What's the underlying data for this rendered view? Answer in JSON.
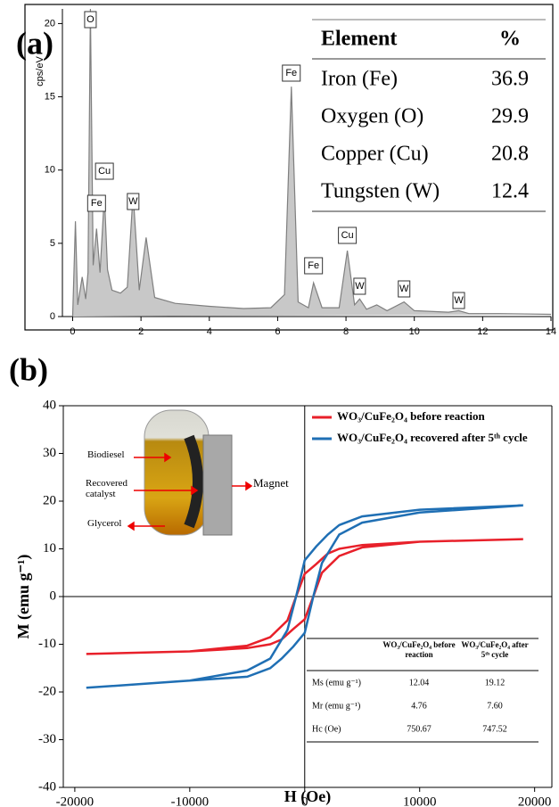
{
  "chart_data": [
    {
      "type": "line",
      "panel_label": "(a)",
      "y_label": "cps/eV",
      "x": [
        0,
        0.08,
        0.15,
        0.28,
        0.38,
        0.45,
        0.52,
        0.6,
        0.7,
        0.8,
        0.93,
        1.02,
        1.15,
        1.4,
        1.6,
        1.77,
        1.95,
        2.15,
        2.4,
        3,
        4,
        5,
        5.8,
        6.2,
        6.4,
        6.6,
        6.9,
        7.05,
        7.3,
        7.8,
        8.04,
        8.25,
        8.4,
        8.6,
        8.9,
        9.2,
        9.7,
        10,
        11,
        11.3,
        11.6,
        12.5,
        14
      ],
      "values": [
        0,
        6.5,
        0.8,
        2.7,
        1.2,
        3,
        21,
        3.5,
        6.0,
        3.0,
        8.3,
        3.2,
        1.8,
        1.6,
        2.0,
        8.4,
        1.8,
        5.4,
        1.3,
        0.9,
        0.7,
        0.55,
        0.6,
        1.5,
        15.7,
        1.0,
        0.6,
        2.3,
        0.6,
        0.6,
        4.5,
        0.8,
        1.2,
        0.5,
        0.8,
        0.4,
        1.0,
        0.4,
        0.3,
        0.4,
        0.2,
        0.2,
        0.15
      ],
      "color": "#7f7f7f",
      "fill": "#c8c8c8",
      "xlim": [
        -0.3,
        14
      ],
      "ylim": [
        0,
        21
      ],
      "xticks": [
        0,
        2,
        4,
        6,
        8,
        10,
        12,
        14
      ],
      "yticks": [
        0,
        5,
        10,
        15,
        20
      ],
      "peak_labels": [
        "O",
        "Fe",
        "Cu",
        "W",
        "Fe",
        "Fe",
        "Cu",
        "W",
        "W",
        "W"
      ],
      "table": {
        "header": [
          "Element",
          "%"
        ],
        "rows": [
          [
            "Iron (Fe)",
            "36.9"
          ],
          [
            "Oxygen (O)",
            "29.9"
          ],
          [
            "Copper (Cu)",
            "20.8"
          ],
          [
            "Tungsten (W)",
            "12.4"
          ]
        ]
      }
    },
    {
      "type": "line",
      "panel_label": "(b)",
      "x_label": "H (Oe)",
      "y_label": "M (emu g⁻¹)",
      "x": [
        19000,
        10000,
        5000,
        3000,
        2000,
        1000,
        0,
        -750,
        -1500,
        -3000,
        -5000,
        -10000,
        -19000,
        -10000,
        -5000,
        -3000,
        -2000,
        -1000,
        0,
        750,
        1500,
        3000,
        5000,
        10000,
        19000
      ],
      "series": [
        {
          "name": "WO₃/CuFe₂O₄ before reaction",
          "color": "#e8202a",
          "values": [
            12.04,
            11.5,
            10.8,
            10.0,
            9.0,
            6.8,
            4.76,
            0,
            -5,
            -8.5,
            -10.3,
            -11.5,
            -12.04,
            -11.5,
            -10.8,
            -10.0,
            -9.0,
            -6.8,
            -4.76,
            0,
            5,
            8.5,
            10.3,
            11.5,
            12.04
          ]
        },
        {
          "name": "WO₃/CuFe₂O₄ recovered after 5ᵗʰ cycle",
          "color": "#1f6fb4",
          "values": [
            19.12,
            18.2,
            16.8,
            15.0,
            13.0,
            10.5,
            7.6,
            0,
            -7,
            -13,
            -15.5,
            -17.6,
            -19.12,
            -17.6,
            -16.8,
            -15.0,
            -13.0,
            -10.5,
            -7.6,
            0,
            7,
            13,
            15.5,
            17.6,
            19.12
          ]
        }
      ],
      "xlim": [
        -21000,
        21500
      ],
      "ylim": [
        -40,
        40
      ],
      "xticks": [
        -20000,
        -10000,
        0,
        10000,
        20000
      ],
      "yticks": [
        -40,
        -30,
        -20,
        -10,
        0,
        10,
        20,
        30,
        40
      ],
      "zero_lines": true,
      "legend": "upper right",
      "photo_labels": [
        "Biodiesel",
        "Recovered catalyst",
        "Glycerol",
        "Magnet"
      ],
      "table": {
        "header": [
          "",
          "WO₃/CuFe₂O₄ before reaction",
          "WO₃/CuFe₂O₄ after 5ᵗʰ cycle"
        ],
        "rows": [
          [
            "Ms (emu g⁻¹)",
            "12.04",
            "19.12"
          ],
          [
            "Mr (emu g⁻¹)",
            "4.76",
            "7.60"
          ],
          [
            "Hc (Oe)",
            "750.67",
            "747.52"
          ]
        ]
      }
    }
  ]
}
